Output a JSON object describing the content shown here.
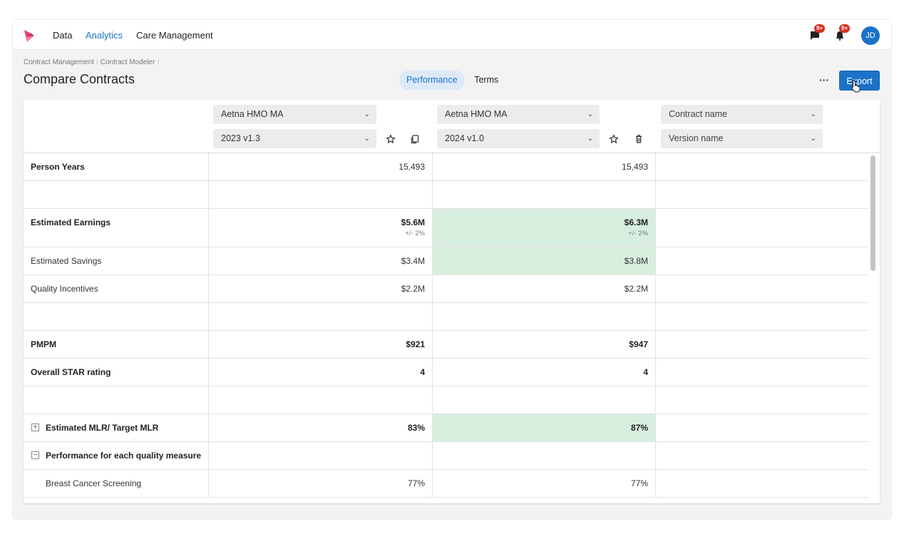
{
  "nav": {
    "items": [
      {
        "label": "Data",
        "active": false
      },
      {
        "label": "Analytics",
        "active": true
      },
      {
        "label": "Care Management",
        "active": false
      }
    ],
    "messages_badge": "9+",
    "alerts_badge": "9+",
    "avatar_initials": "JD",
    "accent_color": "#1a73c8"
  },
  "breadcrumb": [
    "Contract Management",
    "Contract Modeler"
  ],
  "page_title": "Compare Contracts",
  "tabs": [
    {
      "label": "Performance",
      "active": true
    },
    {
      "label": "Terms",
      "active": false
    }
  ],
  "actions": {
    "more": "···",
    "export_label": "Export"
  },
  "columns": [
    {
      "contract": "Aetna HMO MA",
      "version": "2023 v1.3",
      "icons": [
        "star-icon",
        "copy-icon"
      ]
    },
    {
      "contract": "Aetna HMO MA",
      "version": "2024 v1.0",
      "icons": [
        "star-icon",
        "trash-icon"
      ]
    },
    {
      "contract": "Contract name",
      "version": "Version name",
      "icons": []
    }
  ],
  "highlight_color": "#d7eedf",
  "rows": [
    {
      "label": "Person Years",
      "bold": true,
      "values": [
        "15,493",
        "15,493",
        ""
      ],
      "bold_values": false
    },
    {
      "label": "",
      "bold": false,
      "values": [
        "",
        "",
        ""
      ],
      "spacer": true
    },
    {
      "label": "Estimated Earnings",
      "bold": true,
      "values": [
        "$5.6M",
        "$6.3M",
        ""
      ],
      "bold_values": true,
      "sub": [
        "+/- 2%",
        "+/- 2%",
        ""
      ],
      "highlight": 1
    },
    {
      "label": "Estimated Savings",
      "bold": false,
      "values": [
        "$3.4M",
        "$3.8M",
        ""
      ],
      "highlight": 1
    },
    {
      "label": "Quality Incentives",
      "bold": false,
      "values": [
        "$2.2M",
        "$2.2M",
        ""
      ]
    },
    {
      "label": "",
      "bold": false,
      "values": [
        "",
        "",
        ""
      ],
      "spacer": true
    },
    {
      "label": "PMPM",
      "bold": true,
      "values": [
        "$921",
        "$947",
        ""
      ],
      "bold_values": true
    },
    {
      "label": "Overall STAR rating",
      "bold": true,
      "values": [
        "4",
        "4",
        ""
      ],
      "bold_values": true
    },
    {
      "label": "",
      "bold": false,
      "values": [
        "",
        "",
        ""
      ],
      "spacer": true
    },
    {
      "label": "Estimated MLR/ Target MLR",
      "bold": true,
      "values": [
        "83%",
        "87%",
        ""
      ],
      "bold_values": true,
      "expander": "+",
      "highlight": 1
    },
    {
      "label": "Performance for each quality measure",
      "bold": true,
      "values": [
        "",
        "",
        ""
      ],
      "expander": "−"
    },
    {
      "label": "Breast Cancer Screening",
      "bold": false,
      "values": [
        "77%",
        "77%",
        ""
      ],
      "indent": true
    }
  ]
}
